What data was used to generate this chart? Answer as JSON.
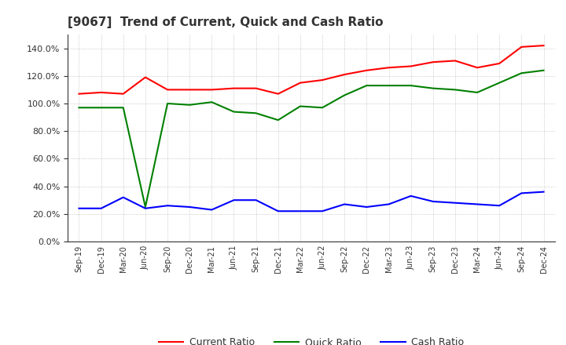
{
  "title": "[9067]  Trend of Current, Quick and Cash Ratio",
  "x_labels": [
    "Sep-19",
    "Dec-19",
    "Mar-20",
    "Jun-20",
    "Sep-20",
    "Dec-20",
    "Mar-21",
    "Jun-21",
    "Sep-21",
    "Dec-21",
    "Mar-22",
    "Jun-22",
    "Sep-22",
    "Dec-22",
    "Mar-23",
    "Jun-23",
    "Sep-23",
    "Dec-23",
    "Mar-24",
    "Jun-24",
    "Sep-24",
    "Dec-24"
  ],
  "current_ratio": [
    1.07,
    1.08,
    1.07,
    1.19,
    1.1,
    1.1,
    1.1,
    1.11,
    1.11,
    1.07,
    1.15,
    1.17,
    1.21,
    1.24,
    1.26,
    1.27,
    1.3,
    1.31,
    1.26,
    1.29,
    1.41,
    1.42
  ],
  "quick_ratio": [
    0.97,
    0.97,
    0.97,
    0.25,
    1.0,
    0.99,
    1.01,
    0.94,
    0.93,
    0.88,
    0.98,
    0.97,
    1.06,
    1.13,
    1.13,
    1.13,
    1.11,
    1.1,
    1.08,
    1.15,
    1.22,
    1.24
  ],
  "cash_ratio": [
    0.24,
    0.24,
    0.32,
    0.24,
    0.26,
    0.25,
    0.23,
    0.3,
    0.3,
    0.22,
    0.22,
    0.22,
    0.27,
    0.25,
    0.27,
    0.33,
    0.29,
    0.28,
    0.27,
    0.26,
    0.35,
    0.36
  ],
  "current_color": "#FF0000",
  "quick_color": "#008000",
  "cash_color": "#0000FF",
  "background_color": "#FFFFFF",
  "grid_color": "#999999",
  "ylim": [
    0.0,
    1.5
  ],
  "yticks": [
    0.0,
    0.2,
    0.4,
    0.6,
    0.8,
    1.0,
    1.2,
    1.4
  ],
  "legend_labels": [
    "Current Ratio",
    "Quick Ratio",
    "Cash Ratio"
  ]
}
